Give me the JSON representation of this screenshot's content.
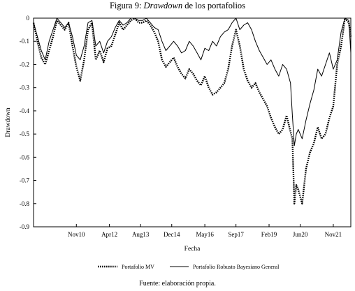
{
  "figure": {
    "title_prefix": "Figura 9: ",
    "title_emph": "Drawdown",
    "title_suffix": " de los portafolios",
    "source": "Fuente: elaboración propia."
  },
  "chart_data": {
    "type": "line",
    "xlabel": "Fecha",
    "ylabel": "Drawdown",
    "ylim": [
      -0.9,
      0
    ],
    "yticks": [
      0,
      -0.1,
      -0.2,
      -0.3,
      -0.4,
      -0.5,
      -0.6,
      -0.7,
      -0.8,
      -0.9
    ],
    "ytick_labels": [
      "0",
      "-0.1",
      "-0.2",
      "-0.3",
      "-0.4",
      "-0.5",
      "-0.6",
      "-0.7",
      "-0.8",
      "-0.9"
    ],
    "xlim": [
      "2009-01",
      "2022-08"
    ],
    "xticks": [
      "2010-11",
      "2012-04",
      "2013-08",
      "2014-12",
      "2016-05",
      "2017-09",
      "2019-02",
      "2020-06",
      "2021-11"
    ],
    "xtick_labels": [
      "Nov10",
      "Apr12",
      "Aug13",
      "Dec14",
      "May16",
      "Sep17",
      "Feb19",
      "Jun20",
      "Nov21"
    ],
    "legend_position": "bottom",
    "series": [
      {
        "name": "Portafolio MV",
        "style": "dotted",
        "color": "#000000",
        "x": [
          "2009-01",
          "2009-03",
          "2009-05",
          "2009-07",
          "2009-09",
          "2009-11",
          "2010-01",
          "2010-03",
          "2010-05",
          "2010-07",
          "2010-09",
          "2010-11",
          "2011-01",
          "2011-03",
          "2011-05",
          "2011-07",
          "2011-09",
          "2011-11",
          "2012-01",
          "2012-03",
          "2012-05",
          "2012-07",
          "2012-09",
          "2012-11",
          "2013-01",
          "2013-03",
          "2013-05",
          "2013-07",
          "2013-09",
          "2013-11",
          "2014-01",
          "2014-03",
          "2014-05",
          "2014-07",
          "2014-09",
          "2014-11",
          "2015-01",
          "2015-03",
          "2015-05",
          "2015-07",
          "2015-09",
          "2015-11",
          "2016-01",
          "2016-03",
          "2016-05",
          "2016-07",
          "2016-09",
          "2016-11",
          "2017-01",
          "2017-03",
          "2017-05",
          "2017-07",
          "2017-09",
          "2017-11",
          "2018-01",
          "2018-03",
          "2018-05",
          "2018-07",
          "2018-09",
          "2018-11",
          "2019-01",
          "2019-03",
          "2019-05",
          "2019-07",
          "2019-09",
          "2019-11",
          "2020-01",
          "2020-02",
          "2020-03",
          "2020-04",
          "2020-05",
          "2020-07",
          "2020-09",
          "2020-11",
          "2021-01",
          "2021-03",
          "2021-05",
          "2021-07",
          "2021-09",
          "2021-11",
          "2022-01",
          "2022-03",
          "2022-05",
          "2022-07",
          "2022-08"
        ],
        "y": [
          -0.02,
          -0.1,
          -0.17,
          -0.2,
          -0.14,
          -0.08,
          -0.01,
          -0.03,
          -0.05,
          -0.02,
          -0.12,
          -0.21,
          -0.27,
          -0.18,
          -0.05,
          -0.02,
          -0.18,
          -0.14,
          -0.19,
          -0.13,
          -0.12,
          -0.07,
          -0.02,
          -0.05,
          -0.03,
          -0.01,
          -0.0,
          -0.02,
          -0.02,
          -0.01,
          -0.03,
          -0.06,
          -0.1,
          -0.18,
          -0.21,
          -0.19,
          -0.17,
          -0.21,
          -0.24,
          -0.26,
          -0.22,
          -0.24,
          -0.27,
          -0.29,
          -0.25,
          -0.3,
          -0.33,
          -0.32,
          -0.3,
          -0.28,
          -0.22,
          -0.12,
          -0.05,
          -0.12,
          -0.22,
          -0.27,
          -0.3,
          -0.28,
          -0.32,
          -0.35,
          -0.38,
          -0.43,
          -0.47,
          -0.5,
          -0.48,
          -0.42,
          -0.49,
          -0.52,
          -0.8,
          -0.72,
          -0.74,
          -0.8,
          -0.65,
          -0.58,
          -0.54,
          -0.47,
          -0.52,
          -0.5,
          -0.43,
          -0.38,
          -0.2,
          -0.12,
          -0.0,
          -0.02,
          -0.08
        ]
      },
      {
        "name": "Portafolio Robusto Bayesiano General",
        "style": "solid",
        "color": "#000000",
        "x": [
          "2009-01",
          "2009-03",
          "2009-05",
          "2009-07",
          "2009-09",
          "2009-11",
          "2010-01",
          "2010-03",
          "2010-05",
          "2010-07",
          "2010-09",
          "2010-11",
          "2011-01",
          "2011-03",
          "2011-05",
          "2011-07",
          "2011-09",
          "2011-11",
          "2012-01",
          "2012-03",
          "2012-05",
          "2012-07",
          "2012-09",
          "2012-11",
          "2013-01",
          "2013-03",
          "2013-05",
          "2013-07",
          "2013-09",
          "2013-11",
          "2014-01",
          "2014-03",
          "2014-05",
          "2014-07",
          "2014-09",
          "2014-11",
          "2015-01",
          "2015-03",
          "2015-05",
          "2015-07",
          "2015-09",
          "2015-11",
          "2016-01",
          "2016-03",
          "2016-05",
          "2016-07",
          "2016-09",
          "2016-11",
          "2017-01",
          "2017-03",
          "2017-05",
          "2017-07",
          "2017-09",
          "2017-11",
          "2018-01",
          "2018-03",
          "2018-05",
          "2018-07",
          "2018-09",
          "2018-11",
          "2019-01",
          "2019-03",
          "2019-05",
          "2019-07",
          "2019-09",
          "2019-11",
          "2020-01",
          "2020-02",
          "2020-03",
          "2020-04",
          "2020-05",
          "2020-07",
          "2020-09",
          "2020-11",
          "2021-01",
          "2021-03",
          "2021-05",
          "2021-07",
          "2021-09",
          "2021-11",
          "2022-01",
          "2022-03",
          "2022-05",
          "2022-07",
          "2022-08"
        ],
        "y": [
          -0.02,
          -0.08,
          -0.14,
          -0.18,
          -0.1,
          -0.05,
          -0.0,
          -0.02,
          -0.04,
          -0.02,
          -0.08,
          -0.16,
          -0.18,
          -0.12,
          -0.02,
          -0.01,
          -0.12,
          -0.1,
          -0.15,
          -0.1,
          -0.08,
          -0.04,
          -0.01,
          -0.03,
          -0.02,
          -0.0,
          -0.0,
          -0.01,
          -0.01,
          -0.0,
          -0.02,
          -0.04,
          -0.05,
          -0.1,
          -0.14,
          -0.12,
          -0.1,
          -0.12,
          -0.15,
          -0.14,
          -0.1,
          -0.12,
          -0.15,
          -0.18,
          -0.13,
          -0.14,
          -0.1,
          -0.12,
          -0.08,
          -0.06,
          -0.05,
          -0.02,
          -0.0,
          -0.05,
          -0.03,
          -0.02,
          -0.05,
          -0.1,
          -0.14,
          -0.17,
          -0.2,
          -0.18,
          -0.22,
          -0.25,
          -0.2,
          -0.22,
          -0.28,
          -0.42,
          -0.55,
          -0.5,
          -0.48,
          -0.52,
          -0.44,
          -0.37,
          -0.31,
          -0.22,
          -0.25,
          -0.2,
          -0.15,
          -0.22,
          -0.18,
          -0.06,
          -0.0,
          -0.01,
          -0.15
        ]
      }
    ]
  }
}
